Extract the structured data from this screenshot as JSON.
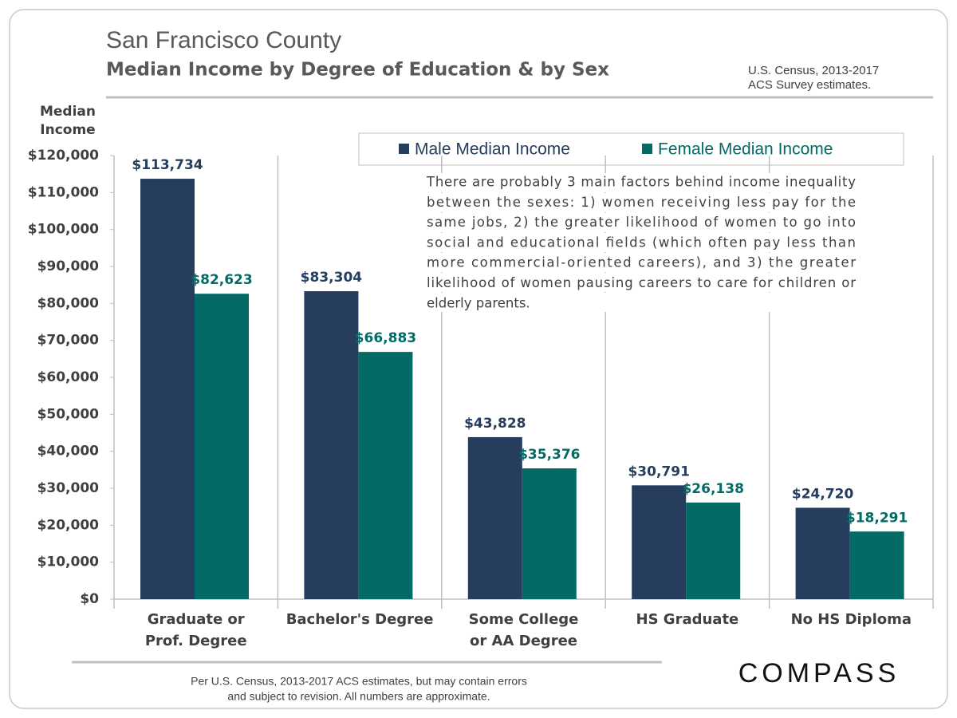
{
  "chart_data": {
    "type": "bar",
    "title": "San Francisco County",
    "subtitle": "Median Income by Degree of Education & by Sex",
    "source": [
      "U.S. Census, 2013-2017",
      "ACS Survey estimates."
    ],
    "y_axis_label": [
      "Median",
      "Income"
    ],
    "categories": [
      [
        "Graduate or",
        "Prof. Degree"
      ],
      [
        "Bachelor's Degree"
      ],
      [
        "Some College",
        "or AA Degree"
      ],
      [
        "HS Graduate"
      ],
      [
        "No HS Diploma"
      ]
    ],
    "series": [
      {
        "name": "Male Median Income",
        "color": "#263d5e",
        "values": [
          113734,
          83304,
          43828,
          30791,
          24720
        ],
        "value_labels": [
          "$113,734",
          "$83,304",
          "$43,828",
          "$30,791",
          "$24,720"
        ]
      },
      {
        "name": "Female Median Income",
        "color": "#036a66",
        "values": [
          82623,
          66883,
          35376,
          26138,
          18291
        ],
        "value_labels": [
          "$82,623",
          "$66,883",
          "$35,376",
          "$26,138",
          "$18,291"
        ]
      }
    ],
    "ylim": [
      0,
      120000
    ],
    "yticks": [
      {
        "value": 0,
        "label": "$0"
      },
      {
        "value": 10000,
        "label": "$10,000"
      },
      {
        "value": 20000,
        "label": "$20,000"
      },
      {
        "value": 30000,
        "label": "$30,000"
      },
      {
        "value": 40000,
        "label": "$40,000"
      },
      {
        "value": 50000,
        "label": "$50,000"
      },
      {
        "value": 60000,
        "label": "$60,000"
      },
      {
        "value": 70000,
        "label": "$70,000"
      },
      {
        "value": 80000,
        "label": "$80,000"
      },
      {
        "value": 90000,
        "label": "$90,000"
      },
      {
        "value": 100000,
        "label": "$100,000"
      },
      {
        "value": 110000,
        "label": "$110,000"
      },
      {
        "value": 120000,
        "label": "$120,000"
      }
    ],
    "annotation": [
      "There are probably 3 main factors behind income inequality",
      "between the sexes: 1) women receiving less pay for the",
      "same jobs, 2) the greater likelihood of women to go into",
      "social and educational fields (which often pay less than",
      "more commercial-oriented careers), and 3) the greater",
      "likelihood of women pausing careers to care for children or",
      "elderly parents."
    ],
    "footnote": [
      "Per U.S. Census, 2013-2017 ACS estimates, but may contain errors",
      "and subject to revision. All numbers are approximate."
    ],
    "logo": "COMPASS"
  }
}
